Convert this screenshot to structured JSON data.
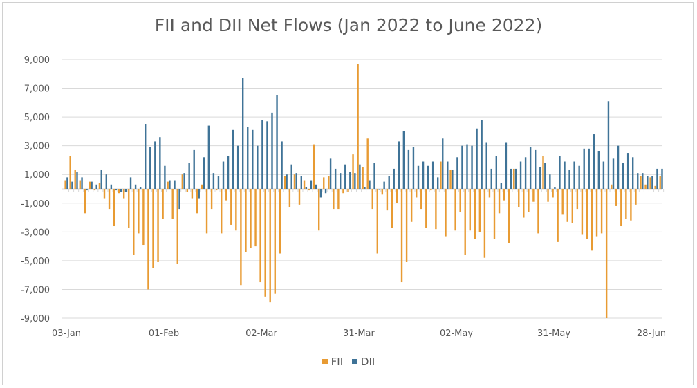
{
  "chart_data": {
    "type": "bar",
    "title": "FII and DII Net Flows (Jan 2022 to June 2022)",
    "xlabel": "",
    "ylabel": "",
    "ylim": [
      -9000,
      9000
    ],
    "y_ticks": [
      9000,
      7000,
      5000,
      3000,
      1000,
      -1000,
      -3000,
      -5000,
      -7000,
      -9000
    ],
    "y_tick_labels": [
      "9,000",
      "7,000",
      "5,000",
      "3,000",
      "1,000",
      "-1,000",
      "-3,000",
      "-5,000",
      "-7,000",
      "-9,000"
    ],
    "x_tick_labels": [
      "03-Jan",
      "01-Feb",
      "02-Mar",
      "31-Mar",
      "02-May",
      "31-May",
      "28-Jun"
    ],
    "grid": true,
    "legend_position": "bottom",
    "colors": {
      "FII": "#E89B33",
      "DII": "#3F7397"
    },
    "categories": [
      "03-Jan",
      "04-Jan",
      "05-Jan",
      "06-Jan",
      "07-Jan",
      "10-Jan",
      "11-Jan",
      "12-Jan",
      "13-Jan",
      "14-Jan",
      "17-Jan",
      "18-Jan",
      "19-Jan",
      "20-Jan",
      "21-Jan",
      "24-Jan",
      "25-Jan",
      "27-Jan",
      "28-Jan",
      "31-Jan",
      "01-Feb",
      "02-Feb",
      "03-Feb",
      "04-Feb",
      "07-Feb",
      "08-Feb",
      "09-Feb",
      "10-Feb",
      "11-Feb",
      "14-Feb",
      "15-Feb",
      "16-Feb",
      "17-Feb",
      "18-Feb",
      "21-Feb",
      "22-Feb",
      "23-Feb",
      "24-Feb",
      "25-Feb",
      "28-Feb",
      "02-Mar",
      "03-Mar",
      "04-Mar",
      "07-Mar",
      "08-Mar",
      "09-Mar",
      "10-Mar",
      "11-Mar",
      "14-Mar",
      "15-Mar",
      "16-Mar",
      "17-Mar",
      "21-Mar",
      "22-Mar",
      "23-Mar",
      "24-Mar",
      "25-Mar",
      "28-Mar",
      "29-Mar",
      "30-Mar",
      "31-Mar",
      "01-Apr",
      "04-Apr",
      "05-Apr",
      "06-Apr",
      "07-Apr",
      "08-Apr",
      "11-Apr",
      "12-Apr",
      "13-Apr",
      "18-Apr",
      "19-Apr",
      "20-Apr",
      "21-Apr",
      "22-Apr",
      "25-Apr",
      "26-Apr",
      "27-Apr",
      "28-Apr",
      "29-Apr",
      "02-May",
      "04-May",
      "05-May",
      "06-May",
      "09-May",
      "10-May",
      "11-May",
      "12-May",
      "13-May",
      "16-May",
      "17-May",
      "18-May",
      "19-May",
      "20-May",
      "23-May",
      "24-May",
      "25-May",
      "26-May",
      "27-May",
      "30-May",
      "31-May",
      "01-Jun",
      "02-Jun",
      "03-Jun",
      "06-Jun",
      "07-Jun",
      "08-Jun",
      "09-Jun",
      "10-Jun",
      "13-Jun",
      "14-Jun",
      "15-Jun",
      "16-Jun",
      "17-Jun",
      "20-Jun",
      "21-Jun",
      "22-Jun",
      "23-Jun",
      "24-Jun",
      "27-Jun",
      "28-Jun",
      "29-Jun",
      "30-Jun"
    ],
    "series": [
      {
        "name": "FII",
        "values": [
          600,
          2300,
          1300,
          600,
          -1700,
          500,
          -100,
          400,
          -700,
          -1400,
          -2600,
          -300,
          -700,
          -2700,
          -4600,
          -3100,
          -3900,
          -7000,
          -5500,
          -5100,
          -2100,
          500,
          -2100,
          -5200,
          1000,
          -200,
          -700,
          -1700,
          300,
          -3100,
          -1400,
          -100,
          -3100,
          -800,
          -2500,
          -2900,
          -6700,
          -4400,
          -4100,
          -4000,
          -6500,
          -7500,
          -7900,
          -7300,
          -4500,
          900,
          -1300,
          1000,
          -1100,
          600,
          -100,
          3100,
          -2900,
          800,
          900,
          -1400,
          -1400,
          -300,
          -200,
          2400,
          8700,
          1500,
          3500,
          -1400,
          -4500,
          -400,
          -1500,
          -2700,
          -1000,
          -6500,
          -5100,
          -2300,
          -600,
          -1400,
          -2700,
          -100,
          -2800,
          1900,
          -3300,
          1300,
          -2900,
          -1600,
          -4600,
          -2900,
          -3500,
          -3000,
          -4800,
          -600,
          -3500,
          -1700,
          -800,
          -3800,
          1400,
          -1300,
          -2000,
          -1600,
          -900,
          -3100,
          2300,
          -900,
          -600,
          -3700,
          -1800,
          -2300,
          -2400,
          -1400,
          -3200,
          -3500,
          -4300,
          -3300,
          -3100,
          -9000,
          300,
          -1200,
          -2600,
          -2100,
          -2200,
          -1100,
          900,
          300,
          800,
          200,
          900
        ]
      },
      {
        "name": "DII",
        "values": [
          800,
          500,
          1200,
          800,
          -100,
          500,
          300,
          1300,
          1000,
          300,
          -100,
          -200,
          -200,
          800,
          300,
          100,
          4500,
          2900,
          3300,
          3600,
          1600,
          600,
          600,
          -1400,
          1100,
          1800,
          2700,
          -700,
          2200,
          4400,
          1100,
          900,
          1900,
          2300,
          4100,
          3000,
          7700,
          4300,
          4100,
          3000,
          4800,
          4700,
          5300,
          6500,
          3300,
          1000,
          1700,
          1100,
          900,
          100,
          600,
          300,
          -600,
          -300,
          2100,
          1400,
          1100,
          1700,
          1200,
          1100,
          1700,
          100,
          600,
          1800,
          0,
          500,
          900,
          1400,
          3300,
          4000,
          2700,
          2900,
          1600,
          1900,
          1600,
          1900,
          800,
          3500,
          1900,
          1300,
          2200,
          3000,
          3100,
          3000,
          4200,
          4800,
          3200,
          1400,
          2300,
          400,
          3200,
          1400,
          1400,
          1900,
          2200,
          2900,
          2700,
          1500,
          1800,
          1000,
          100,
          2300,
          1900,
          1300,
          1900,
          1600,
          2800,
          2800,
          3800,
          2600,
          1900,
          6100,
          2100,
          3000,
          1800,
          2500,
          2200,
          1100,
          1100,
          900,
          900,
          1400,
          1400
        ]
      }
    ]
  }
}
